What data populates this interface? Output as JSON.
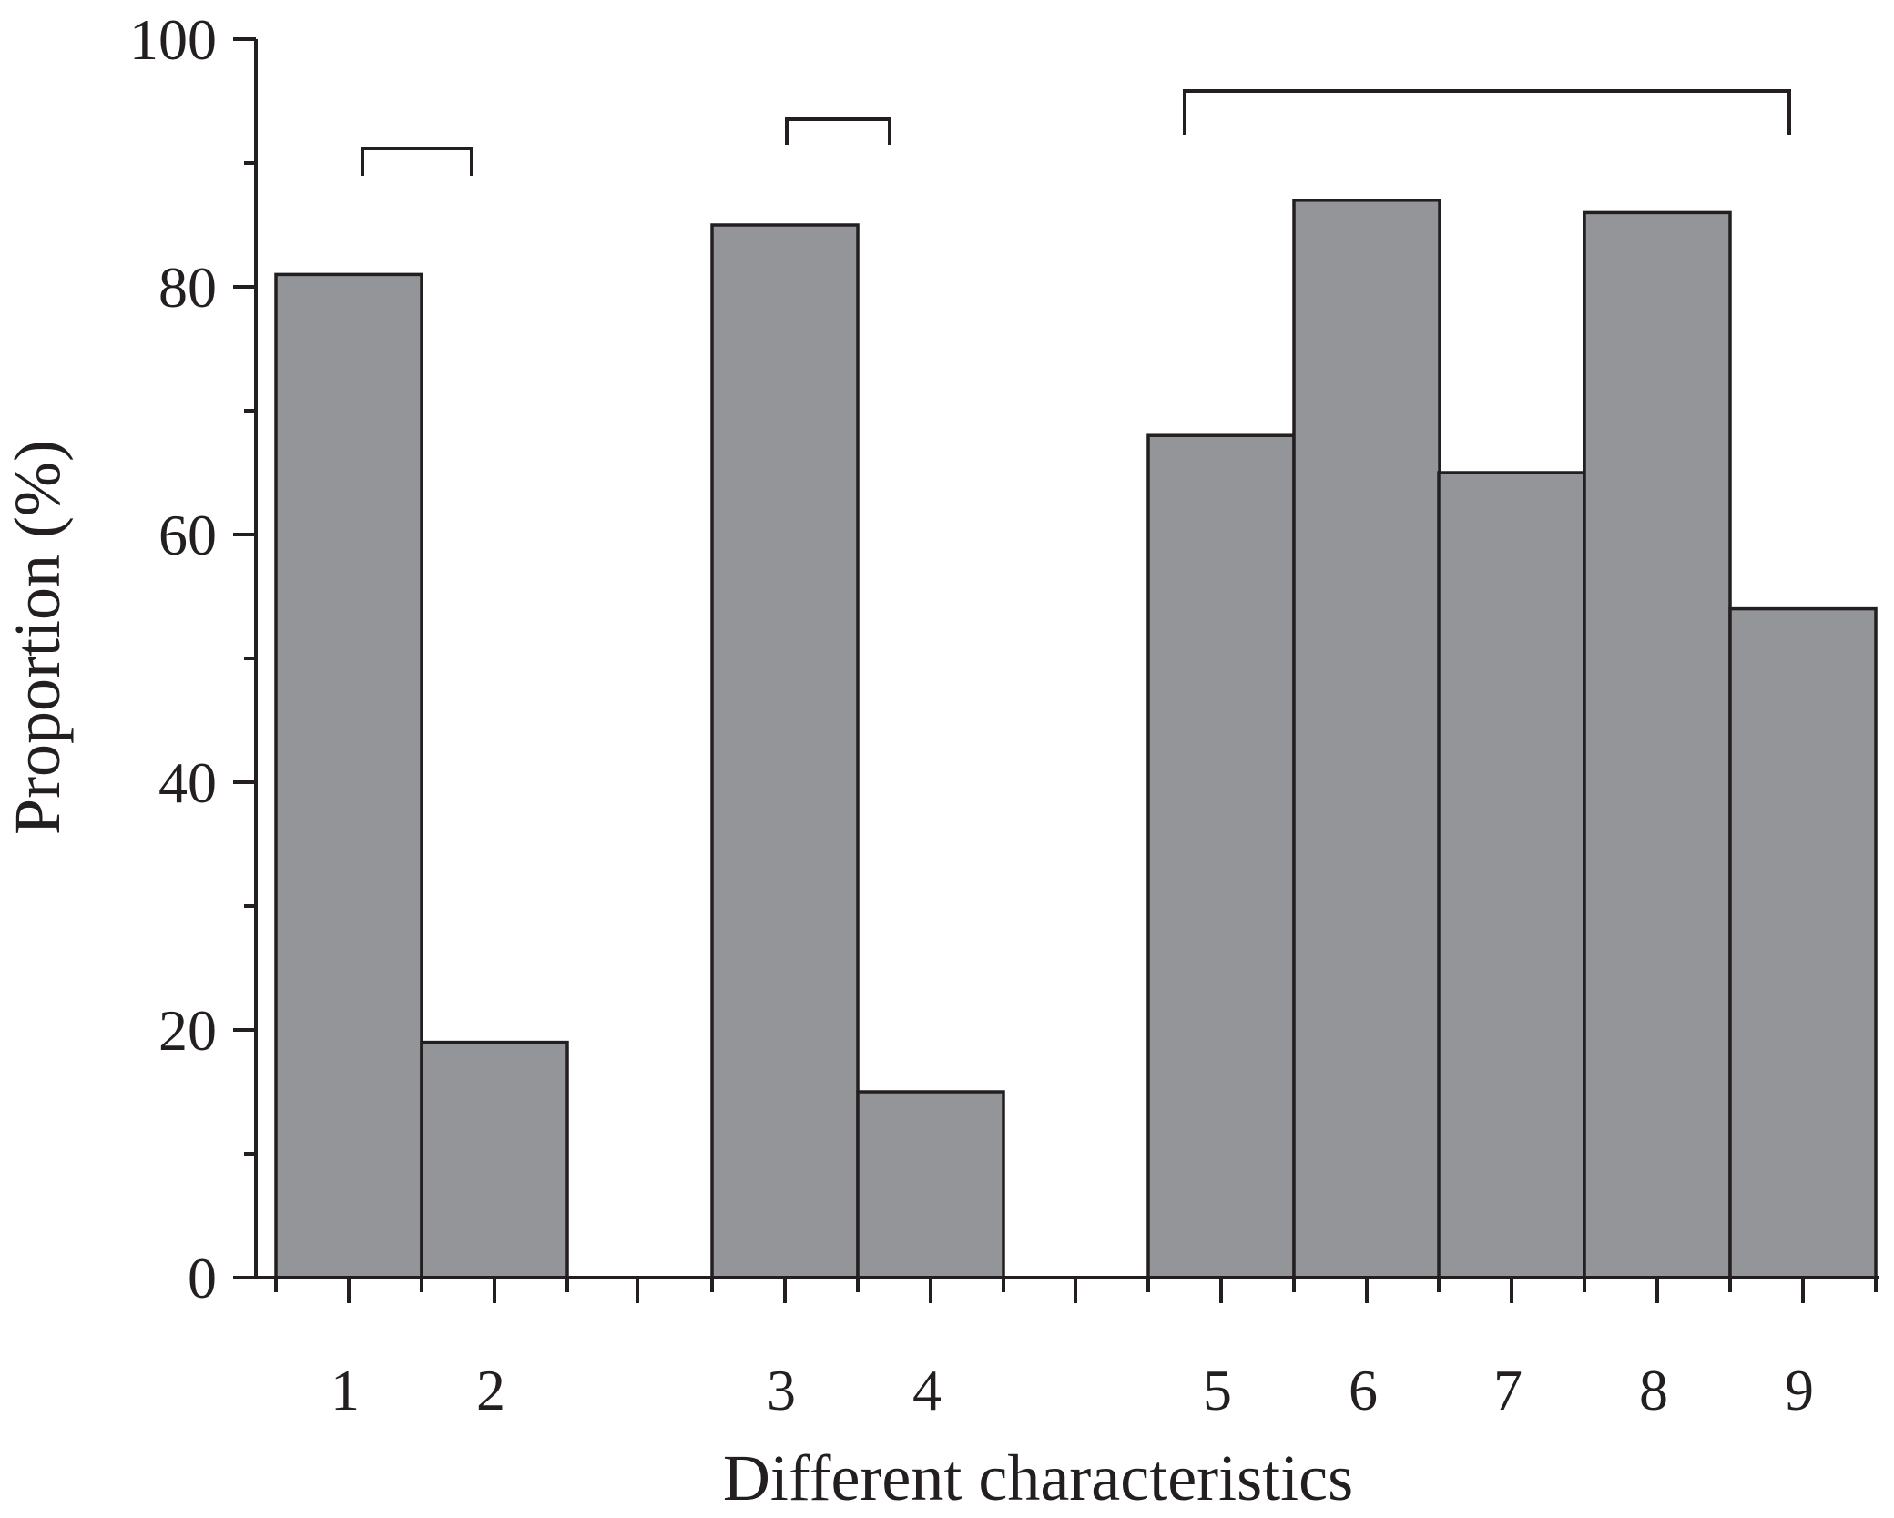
{
  "chart_data": {
    "type": "bar",
    "categories": [
      "1",
      "2",
      "3",
      "4",
      "5",
      "6",
      "7",
      "8",
      "9"
    ],
    "values": [
      81,
      19,
      85,
      15,
      68,
      87,
      65,
      86,
      54
    ],
    "xlabel": "Different characteristics",
    "ylabel": "Proportion (%)",
    "ylim": [
      0,
      100
    ],
    "yticks": [
      "0",
      "20",
      "40",
      "60",
      "80",
      "100"
    ],
    "groups": [
      {
        "categories": [
          "1",
          "2"
        ]
      },
      {
        "categories": [
          "3",
          "4"
        ]
      },
      {
        "categories": [
          "5",
          "6",
          "7",
          "8",
          "9"
        ]
      }
    ],
    "colors": {
      "bar": "#939598",
      "stroke": "#231f20"
    },
    "grid": false,
    "legend": "none"
  }
}
